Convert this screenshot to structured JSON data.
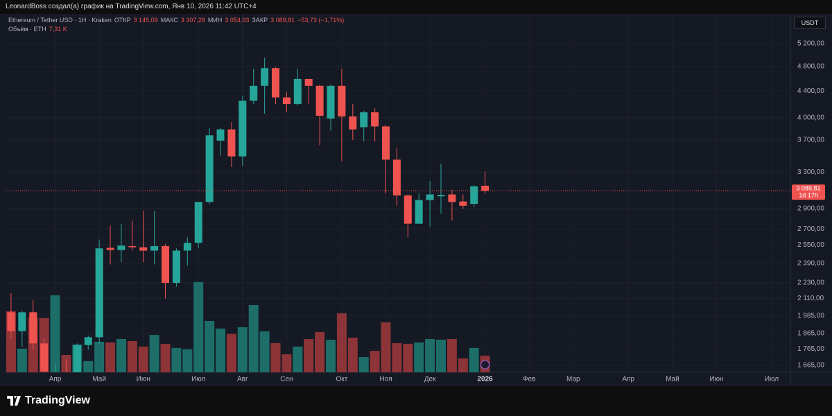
{
  "header": {
    "author_line": "LeonardBoss создал(а) график на TradingView.com, Янв 10, 2026 11:42 UTC+4"
  },
  "chart_data": {
    "type": "candlestick",
    "title": "Ethereum / Tether USD · 1Н · Kraken",
    "legend_fields": [
      {
        "label": "ОТКР",
        "value": "3 145,09"
      },
      {
        "label": "МАКС",
        "value": "3 307,28"
      },
      {
        "label": "МИН",
        "value": "3 054,93"
      },
      {
        "label": "ЗАКР",
        "value": "3 089,81"
      }
    ],
    "change_label": "−53,73 (−1,71%)",
    "volume_legend": {
      "title": "Объём · ETH",
      "value": "7,31 K"
    },
    "x": [
      null,
      null,
      null,
      null,
      null,
      null,
      null,
      null,
      null,
      null,
      null,
      null,
      null,
      null,
      null,
      null,
      null,
      null,
      null,
      null,
      null,
      null,
      null,
      null,
      null,
      null,
      null,
      null,
      null,
      null,
      null,
      null,
      null,
      null,
      null,
      null,
      null,
      null,
      null,
      null,
      null,
      null,
      null,
      null
    ],
    "open": [
      2010,
      1880,
      2010,
      1800,
      1550,
      1590,
      1580,
      1790,
      1840,
      2525,
      2505,
      2540,
      2530,
      2500,
      2540,
      2230,
      2500,
      2570,
      2970,
      3690,
      3840,
      3490,
      4250,
      4480,
      4770,
      4300,
      4200,
      4590,
      4480,
      3990,
      4480,
      4020,
      3870,
      4080,
      3880,
      3450,
      3040,
      2750,
      2990,
      3030,
      3050,
      2975,
      2950,
      3145.09
    ],
    "high": [
      2150,
      2020,
      2100,
      1830,
      1680,
      1700,
      1800,
      1850,
      2600,
      2730,
      2750,
      2780,
      2880,
      2880,
      2560,
      2520,
      2620,
      2970,
      3860,
      3860,
      3940,
      4330,
      4760,
      4950,
      4790,
      4380,
      4760,
      4590,
      4500,
      4500,
      4760,
      4200,
      4100,
      4140,
      3900,
      3600,
      3050,
      3060,
      3200,
      3400,
      3100,
      3050,
      3150,
      3307.28
    ],
    "low": [
      1830,
      1780,
      1760,
      1600,
      1390,
      1550,
      1560,
      1760,
      1800,
      2380,
      2400,
      2500,
      2400,
      2380,
      2110,
      2200,
      2370,
      2520,
      2950,
      3500,
      3360,
      3370,
      4200,
      4060,
      4200,
      4080,
      4180,
      4200,
      3630,
      3820,
      3430,
      3700,
      3680,
      3680,
      3060,
      2930,
      2620,
      2750,
      2720,
      2850,
      2780,
      2900,
      2920,
      3054.93
    ],
    "close": [
      1880,
      2010,
      1800,
      1630,
      1590,
      1580,
      1790,
      1840,
      2520,
      2505,
      2545,
      2530,
      2500,
      2540,
      2230,
      2500,
      2570,
      2970,
      3760,
      3840,
      3490,
      4250,
      4480,
      4770,
      4300,
      4200,
      4590,
      4480,
      4030,
      4480,
      4020,
      3840,
      4080,
      3880,
      3450,
      3040,
      2750,
      2990,
      3050,
      3045,
      2970,
      2930,
      3140,
      3089.81
    ],
    "volume": [
      26.8,
      10.4,
      24.1,
      23.8,
      33.8,
      7.6,
      12.2,
      4.9,
      13.4,
      13.1,
      14.6,
      13.7,
      11.3,
      16.4,
      12.5,
      10.7,
      10.1,
      39.6,
      22.5,
      19.2,
      16.8,
      19.8,
      29.5,
      18.0,
      12.8,
      7.9,
      11.3,
      14.6,
      17.7,
      14.3,
      25.9,
      15.2,
      6.7,
      9.4,
      21.9,
      12.8,
      12.5,
      13.1,
      14.6,
      14.3,
      14.6,
      6.1,
      10.7,
      7.31
    ],
    "vlim": [
      0,
      45
    ],
    "log_scale": true,
    "ylim": [
      1625,
      5780
    ],
    "yticks": [
      {
        "value": 5200,
        "label": "5 200,00"
      },
      {
        "value": 4800,
        "label": "4 800,00"
      },
      {
        "value": 4400,
        "label": "4 400,00"
      },
      {
        "value": 4000,
        "label": "4 000,00"
      },
      {
        "value": 3700,
        "label": "3 700,00"
      },
      {
        "value": 3300,
        "label": "3 300,00"
      },
      {
        "value": 2900,
        "label": "2 900,00"
      },
      {
        "value": 2700,
        "label": "2 700,00"
      },
      {
        "value": 2550,
        "label": "2 550,00"
      },
      {
        "value": 2390,
        "label": "2 390,00"
      },
      {
        "value": 2230,
        "label": "2 230,00"
      },
      {
        "value": 2110,
        "label": "2 110,00"
      },
      {
        "value": 1985,
        "label": "1 985,00"
      },
      {
        "value": 1865,
        "label": "1 865,00"
      },
      {
        "value": 1765,
        "label": "1 765,00"
      },
      {
        "value": 1665,
        "label": "1 665,00"
      }
    ],
    "xlim": [
      -0.5,
      70.7
    ],
    "xticks": [
      {
        "value": 4,
        "label": "Апр"
      },
      {
        "value": 8,
        "label": "Май"
      },
      {
        "value": 12,
        "label": "Июн"
      },
      {
        "value": 17,
        "label": "Июл"
      },
      {
        "value": 21,
        "label": "Авг"
      },
      {
        "value": 25,
        "label": "Сен"
      },
      {
        "value": 30,
        "label": "Окт"
      },
      {
        "value": 34,
        "label": "Ноя"
      },
      {
        "value": 38,
        "label": "Дек"
      },
      {
        "value": 43,
        "label": "2026"
      },
      {
        "value": 47,
        "label": "Фев"
      },
      {
        "value": 51,
        "label": "Мар"
      },
      {
        "value": 56,
        "label": "Апр"
      },
      {
        "value": 60,
        "label": "Май"
      },
      {
        "value": 64,
        "label": "Июн"
      },
      {
        "value": 69,
        "label": "Июл"
      }
    ],
    "grid": true,
    "up_color": "#26a69a",
    "down_color": "#ef5350",
    "volume_up_color": "#1d6e69",
    "volume_down_color": "#8c3437",
    "last_price_label": "3 089,81",
    "countdown": "1d 17h",
    "currency": "USDT"
  },
  "footer": {
    "brand": "TradingView"
  }
}
